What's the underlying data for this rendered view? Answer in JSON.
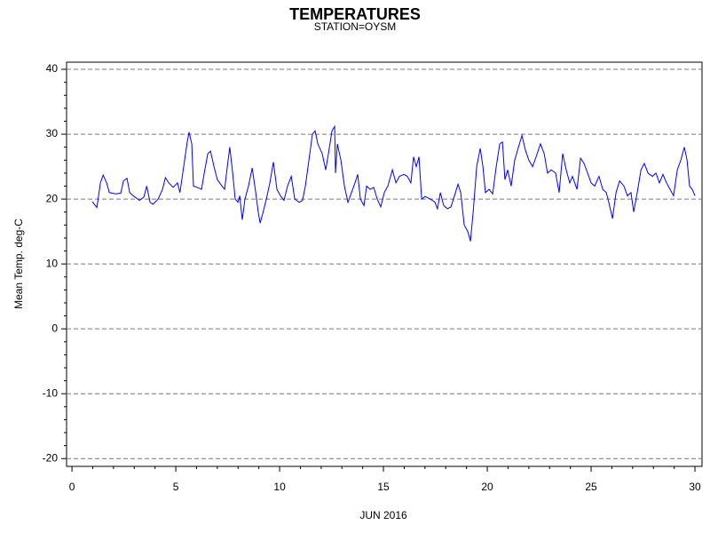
{
  "chart_data": {
    "type": "line",
    "title": "TEMPERATURES",
    "subtitle": "STATION=OYSM",
    "x_label": "JUN 2016",
    "y_label": "Mean Temp. deg-C",
    "xlim": [
      -0.26,
      30.34
    ],
    "ylim": [
      -21.2,
      41.1
    ],
    "xticks": [
      0,
      5,
      10,
      15,
      20,
      25,
      30
    ],
    "xminorticks": [
      1,
      2,
      3,
      4,
      6,
      7,
      8,
      9,
      11,
      12,
      13,
      14,
      16,
      17,
      18,
      19,
      21,
      22,
      23,
      24,
      26,
      27,
      28,
      29
    ],
    "yticks": [
      -20,
      -10,
      0,
      10,
      20,
      30,
      40
    ],
    "yminorticks": [
      -18,
      -16,
      -14,
      -12,
      -8,
      -6,
      -4,
      -2,
      2,
      4,
      6,
      8,
      12,
      14,
      16,
      18,
      22,
      24,
      26,
      28,
      32,
      34,
      36,
      38
    ],
    "grid": true,
    "series": [
      {
        "name": "Mean Temp.",
        "color": "#0000ff",
        "x": [
          0.98,
          1.2,
          1.37,
          1.5,
          1.67,
          1.8,
          2.1,
          2.35,
          2.48,
          2.65,
          2.78,
          2.95,
          3.25,
          3.46,
          3.6,
          3.76,
          3.9,
          4.15,
          4.36,
          4.5,
          4.66,
          4.87,
          5.08,
          5.2,
          5.38,
          5.56,
          5.64,
          5.77,
          5.85,
          6.03,
          6.24,
          6.37,
          6.54,
          6.67,
          6.84,
          7.0,
          7.18,
          7.35,
          7.48,
          7.6,
          7.74,
          7.86,
          7.99,
          8.08,
          8.2,
          8.33,
          8.5,
          8.68,
          8.85,
          8.97,
          9.06,
          9.19,
          9.36,
          9.53,
          9.7,
          9.87,
          10.04,
          10.21,
          10.38,
          10.56,
          10.73,
          10.94,
          11.1,
          11.24,
          11.41,
          11.58,
          11.71,
          11.84,
          12.05,
          12.22,
          12.35,
          12.52,
          12.65,
          12.69,
          12.78,
          12.95,
          13.12,
          13.29,
          13.46,
          13.63,
          13.76,
          13.89,
          14.06,
          14.19,
          14.36,
          14.53,
          14.7,
          14.87,
          15.04,
          15.21,
          15.43,
          15.6,
          15.77,
          15.98,
          16.15,
          16.32,
          16.45,
          16.58,
          16.71,
          16.84,
          17.0,
          17.26,
          17.48,
          17.6,
          17.74,
          17.9,
          18.08,
          18.25,
          18.42,
          18.59,
          18.72,
          18.89,
          19.06,
          19.19,
          19.32,
          19.49,
          19.66,
          19.79,
          19.91,
          20.09,
          20.26,
          20.43,
          20.6,
          20.73,
          20.85,
          20.98,
          21.15,
          21.32,
          21.5,
          21.67,
          21.84,
          22.0,
          22.18,
          22.35,
          22.56,
          22.74,
          22.9,
          23.08,
          23.29,
          23.46,
          23.63,
          23.8,
          23.97,
          24.1,
          24.32,
          24.49,
          24.66,
          24.83,
          25.0,
          25.17,
          25.38,
          25.56,
          25.73,
          25.85,
          26.03,
          26.2,
          26.37,
          26.58,
          26.75,
          26.92,
          27.05,
          27.22,
          27.4,
          27.56,
          27.74,
          27.95,
          28.12,
          28.29,
          28.46,
          28.63,
          28.8,
          28.97,
          29.15,
          29.32,
          29.49,
          29.62,
          29.74,
          29.87,
          30.0
        ],
        "values": [
          19.6,
          18.7,
          22.5,
          23.7,
          22.5,
          21,
          20.8,
          20.9,
          22.8,
          23.2,
          21,
          20.5,
          19.8,
          20.3,
          22,
          19.5,
          19.2,
          20,
          21.5,
          23.3,
          22.5,
          21.8,
          22.5,
          21,
          25,
          29,
          30.3,
          28.5,
          22,
          21.8,
          21.5,
          24,
          27,
          27.4,
          25,
          23,
          22.2,
          21.5,
          25,
          28,
          24,
          20,
          19.5,
          20.5,
          16.8,
          20,
          22,
          24.8,
          21,
          18,
          16.3,
          17.8,
          20,
          22.5,
          25.7,
          21.5,
          20.5,
          19.8,
          22,
          23.5,
          20,
          19.5,
          19.8,
          22,
          26,
          30,
          30.5,
          28.5,
          27,
          24.5,
          27,
          30.5,
          31.2,
          24,
          28.5,
          26,
          22,
          19.5,
          21,
          22.5,
          23.8,
          20,
          19,
          22,
          21.5,
          21.8,
          20,
          18.8,
          21,
          22,
          24.5,
          22.5,
          23.5,
          23.8,
          23.5,
          22.5,
          26.5,
          25,
          26.5,
          20,
          20.4,
          20,
          19.5,
          18.5,
          21,
          19,
          18.5,
          18.8,
          20.5,
          22.3,
          21,
          16,
          15,
          13.5,
          18,
          25,
          27.8,
          25,
          21,
          21.5,
          20.8,
          25,
          28.5,
          28.8,
          23,
          24.5,
          22,
          26,
          28,
          29.8,
          27.5,
          26,
          25,
          26.5,
          28.5,
          27,
          24,
          24.5,
          24,
          21,
          27,
          24.5,
          22.5,
          23.5,
          21.5,
          26.3,
          25.5,
          24,
          22.5,
          22,
          23.5,
          21.5,
          21,
          19.5,
          17,
          21,
          22.8,
          22,
          20.5,
          21,
          18,
          21,
          24.5,
          25.5,
          24,
          23.5,
          24,
          22.5,
          23.8,
          22.5,
          21.5,
          20.5,
          24.5,
          26,
          28,
          26,
          22,
          21.5,
          20.5
        ]
      }
    ]
  }
}
